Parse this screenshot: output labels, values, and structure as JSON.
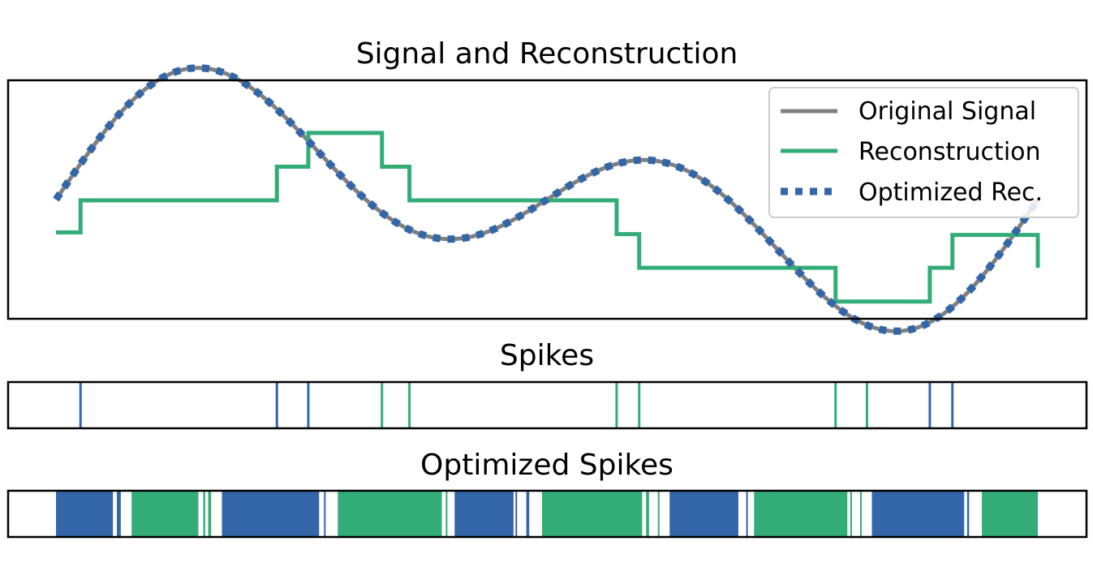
{
  "colors": {
    "original": "#808080",
    "reconstruction": "#33ad78",
    "optimized": "#3366a8",
    "up_spike": "#33ad78",
    "down_spike": "#3366a8"
  },
  "chart_data": [
    {
      "type": "line",
      "title": "Signal and Reconstruction",
      "xlim": [
        0,
        1
      ],
      "ylim": [
        -1.45,
        1.45
      ],
      "axes_ticks": false,
      "legend_position": "top-right",
      "series": [
        {
          "name": "Original Signal",
          "style": "solid",
          "color": "#808080",
          "formula": "sin(4*pi*x) + 0.8*sin(2*pi*x)",
          "x_range": [
            0,
            1
          ]
        },
        {
          "name": "Reconstruction",
          "style": "step",
          "color": "#33ad78",
          "x": [
            0.0,
            0.025,
            0.225,
            0.257,
            0.332,
            0.36,
            0.571,
            0.594,
            1.0
          ],
          "y": [
            -0.4,
            -0.01,
            0.4,
            0.81,
            0.4,
            -0.01,
            -0.42,
            -0.83,
            -0.83
          ],
          "tail": [
            0.794,
            -1.24,
            0.89,
            -0.83,
            0.913,
            -0.43,
            1.0,
            -0.43
          ]
        },
        {
          "name": "Optimized Rec.",
          "style": "dotted",
          "color": "#3366a8",
          "formula": "sin(4*pi*x) + 0.8*sin(2*pi*x)",
          "x_range": [
            0,
            1
          ]
        }
      ]
    },
    {
      "type": "event",
      "title": "Spikes",
      "xlim": [
        0,
        1
      ],
      "events": [
        {
          "x": 0.025,
          "sign": "down"
        },
        {
          "x": 0.225,
          "sign": "down"
        },
        {
          "x": 0.257,
          "sign": "down"
        },
        {
          "x": 0.332,
          "sign": "up"
        },
        {
          "x": 0.36,
          "sign": "up"
        },
        {
          "x": 0.571,
          "sign": "up"
        },
        {
          "x": 0.594,
          "sign": "up"
        },
        {
          "x": 0.794,
          "sign": "up"
        },
        {
          "x": 0.826,
          "sign": "up"
        },
        {
          "x": 0.89,
          "sign": "down"
        },
        {
          "x": 0.913,
          "sign": "down"
        }
      ]
    },
    {
      "type": "event",
      "title": "Optimized Spikes",
      "xlim": [
        0,
        1
      ],
      "bands": [
        {
          "x0": 0.0,
          "x1": 0.058,
          "sign": "down"
        },
        {
          "x0": 0.062,
          "x1": 0.066,
          "sign": "down"
        },
        {
          "x0": 0.077,
          "x1": 0.145,
          "sign": "up"
        },
        {
          "x0": 0.15,
          "x1": 0.152,
          "sign": "up"
        },
        {
          "x0": 0.155,
          "x1": 0.158,
          "sign": "up"
        },
        {
          "x0": 0.169,
          "x1": 0.268,
          "sign": "down"
        },
        {
          "x0": 0.273,
          "x1": 0.274,
          "sign": "down"
        },
        {
          "x0": 0.287,
          "x1": 0.393,
          "sign": "up"
        },
        {
          "x0": 0.397,
          "x1": 0.398,
          "sign": "up"
        },
        {
          "x0": 0.406,
          "x1": 0.466,
          "sign": "down"
        },
        {
          "x0": 0.468,
          "x1": 0.469,
          "sign": "down"
        },
        {
          "x0": 0.479,
          "x1": 0.482,
          "sign": "down"
        },
        {
          "x0": 0.495,
          "x1": 0.597,
          "sign": "up"
        },
        {
          "x0": 0.601,
          "x1": 0.604,
          "sign": "up"
        },
        {
          "x0": 0.613,
          "x1": 0.614,
          "sign": "up"
        },
        {
          "x0": 0.625,
          "x1": 0.695,
          "sign": "down"
        },
        {
          "x0": 0.703,
          "x1": 0.704,
          "sign": "down"
        },
        {
          "x0": 0.711,
          "x1": 0.806,
          "sign": "up"
        },
        {
          "x0": 0.809,
          "x1": 0.81,
          "sign": "up"
        },
        {
          "x0": 0.819,
          "x1": 0.82,
          "sign": "up"
        },
        {
          "x0": 0.831,
          "x1": 0.925,
          "sign": "down"
        },
        {
          "x0": 0.928,
          "x1": 0.93,
          "sign": "down"
        },
        {
          "x0": 0.943,
          "x1": 1.0,
          "sign": "up"
        }
      ]
    }
  ]
}
